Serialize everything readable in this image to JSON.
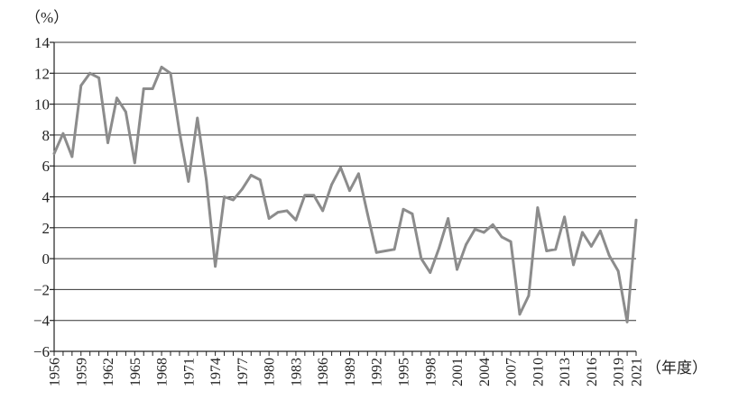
{
  "chart_data": {
    "type": "line",
    "title": "",
    "ylabel": "（%）",
    "xlabel": "（年度）",
    "ylim": [
      -6,
      14
    ],
    "yticks": [
      -6,
      -4,
      -2,
      0,
      2,
      4,
      6,
      8,
      10,
      12,
      14
    ],
    "ytick_labels": [
      "−6",
      "−4",
      "−2",
      "0",
      "2",
      "4",
      "6",
      "8",
      "10",
      "12",
      "14"
    ],
    "xlim": [
      1956,
      2021
    ],
    "xtick_labels": [
      "1956",
      "1959",
      "1962",
      "1965",
      "1968",
      "1971",
      "1974",
      "1977",
      "1980",
      "1983",
      "1986",
      "1989",
      "1992",
      "1995",
      "1998",
      "2001",
      "2004",
      "2007",
      "2010",
      "2013",
      "2016",
      "2019",
      "2021"
    ],
    "grid": "horizontal",
    "legend": "none",
    "series_color": "#8c8c8c",
    "x": [
      1956,
      1957,
      1958,
      1959,
      1960,
      1961,
      1962,
      1963,
      1964,
      1965,
      1966,
      1967,
      1968,
      1969,
      1970,
      1971,
      1972,
      1973,
      1974,
      1975,
      1976,
      1977,
      1978,
      1979,
      1980,
      1981,
      1982,
      1983,
      1984,
      1985,
      1986,
      1987,
      1988,
      1989,
      1990,
      1991,
      1992,
      1993,
      1994,
      1995,
      1996,
      1997,
      1998,
      1999,
      2000,
      2001,
      2002,
      2003,
      2004,
      2005,
      2006,
      2007,
      2008,
      2009,
      2010,
      2011,
      2012,
      2013,
      2014,
      2015,
      2016,
      2017,
      2018,
      2019,
      2020,
      2021
    ],
    "series": [
      {
        "values": [
          6.8,
          8.1,
          6.6,
          11.2,
          12.0,
          11.7,
          7.5,
          10.4,
          9.5,
          6.2,
          11.0,
          11.0,
          12.4,
          12.0,
          8.2,
          5.0,
          9.1,
          5.1,
          -0.5,
          4.0,
          3.8,
          4.5,
          5.4,
          5.1,
          2.6,
          3.0,
          3.1,
          2.5,
          4.1,
          4.1,
          3.1,
          4.8,
          5.9,
          4.4,
          5.5,
          2.9,
          0.4,
          0.5,
          0.6,
          3.2,
          2.9,
          0.0,
          -0.9,
          0.7,
          2.6,
          -0.7,
          0.9,
          1.9,
          1.7,
          2.2,
          1.4,
          1.1,
          -3.6,
          -2.4,
          3.3,
          0.5,
          0.6,
          2.7,
          -0.4,
          1.7,
          0.8,
          1.8,
          0.2,
          -0.8,
          -4.1,
          2.5
        ]
      }
    ]
  }
}
